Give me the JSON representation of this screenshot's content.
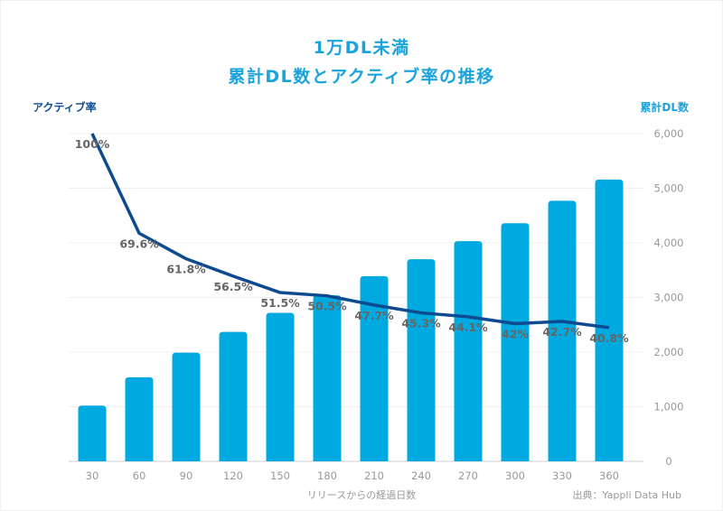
{
  "chart_data": {
    "type": "bar+line",
    "title": [
      "1万DL未満",
      "累計DL数とアクティブ率の推移"
    ],
    "xlabel": "リリースからの経過日数",
    "categories": [
      "30",
      "60",
      "90",
      "120",
      "150",
      "180",
      "210",
      "240",
      "270",
      "300",
      "330",
      "360"
    ],
    "series": [
      {
        "name": "累計DL数",
        "type": "bar",
        "axis": "right",
        "color": "#00a9e0",
        "values": [
          1020,
          1540,
          1990,
          2370,
          2720,
          3040,
          3390,
          3700,
          4030,
          4360,
          4770,
          5160
        ]
      },
      {
        "name": "アクティブ率",
        "type": "line",
        "axis": "left",
        "color": "#0d4a8f",
        "values": [
          100,
          69.6,
          61.8,
          56.5,
          51.5,
          50.5,
          47.7,
          45.3,
          44.1,
          42,
          42.7,
          40.8
        ],
        "labels": [
          "100%",
          "69.6%",
          "61.8%",
          "56.5%",
          "51.5%",
          "50.5%",
          "47.7%",
          "45.3%",
          "44.1%",
          "42%",
          "42.7%",
          "40.8%"
        ]
      }
    ],
    "left_axis": {
      "title": "アクティブ率",
      "range": [
        0,
        100
      ],
      "unit": "%"
    },
    "right_axis": {
      "title": "累計DL数",
      "range": [
        0,
        6000
      ],
      "ticks": [
        "0",
        "1,000",
        "2,000",
        "3,000",
        "4,000",
        "5,000",
        "6,000"
      ],
      "tick_values": [
        0,
        1000,
        2000,
        3000,
        4000,
        5000,
        6000
      ]
    },
    "grid": true,
    "legend": "none"
  },
  "source": "出典：Yappli Data Hub"
}
